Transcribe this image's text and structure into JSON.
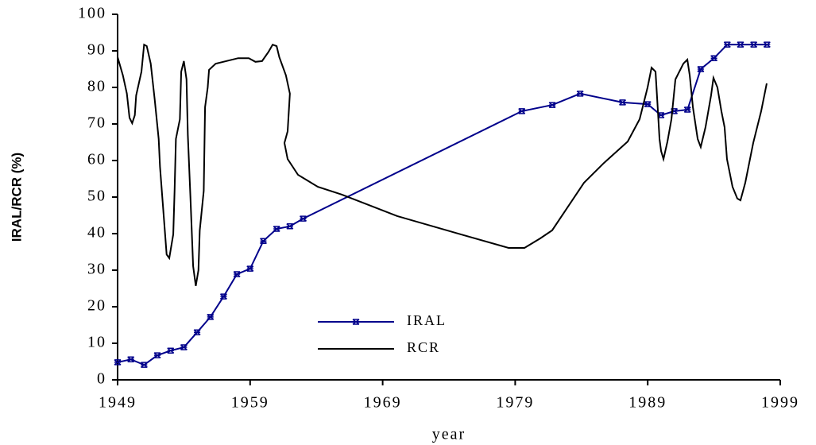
{
  "chart_data": {
    "type": "line",
    "xlabel": "year",
    "ylabel": "IRAL/RCR (%)",
    "xlim": [
      1949,
      1999
    ],
    "xticks": [
      1949,
      1959,
      1969,
      1979,
      1989,
      1999
    ],
    "ylim": [
      0,
      100
    ],
    "yticks": [
      0,
      10,
      20,
      30,
      40,
      50,
      60,
      70,
      80,
      90,
      100
    ],
    "legend": "center",
    "series": [
      {
        "name": "IRAL",
        "color": "#00008b",
        "marker": true,
        "x": [
          1949,
          1950,
          1951,
          1952,
          1953,
          1954,
          1955,
          1956,
          1957,
          1958,
          1959,
          1960,
          1961,
          1962,
          1963,
          1979.5,
          1981.8,
          1983.9,
          1987.1,
          1989,
          1990,
          1991,
          1992,
          1993,
          1994,
          1995,
          1996,
          1997,
          1998
        ],
        "values": [
          4.8,
          5.6,
          4.1,
          6.7,
          8,
          8.9,
          13,
          17.2,
          22.8,
          28.9,
          30.4,
          38,
          41.3,
          42,
          44.1,
          73.5,
          75.2,
          78.3,
          75.9,
          75.4,
          72.4,
          73.5,
          73.9,
          85,
          88,
          91.7,
          91.7,
          91.7,
          91.7
        ]
      },
      {
        "name": "RCR",
        "color": "#000000",
        "marker": false,
        "x": [
          1949,
          1949.4,
          1949.7,
          1949.9,
          1950.1,
          1950.3,
          1950.4,
          1950.8,
          1951,
          1951.2,
          1951.5,
          1951.8,
          1952.1,
          1952.2,
          1952.7,
          1952.9,
          1953.2,
          1953.3,
          1953.4,
          1953.7,
          1953.8,
          1954,
          1954.2,
          1954.3,
          1954.5,
          1954.7,
          1954.9,
          1955.1,
          1955.2,
          1955.5,
          1955.6,
          1955.8,
          1955.9,
          1956.4,
          1958.1,
          1958.9,
          1959.4,
          1959.9,
          1960.4,
          1960.7,
          1961,
          1961.2,
          1961.7,
          1962,
          1961.83,
          1961.59,
          1961.83,
          1962.61,
          1964.11,
          1965.91,
          1970.1,
          1974.9,
          1978.5,
          1979.7,
          1980.89,
          1981.79,
          1982.99,
          1984.19,
          1985.69,
          1987.49,
          1988.39,
          1988.99,
          1989.29,
          1989.59,
          1989.77,
          1989.89,
          1990.01,
          1990.19,
          1990.49,
          1990.79,
          1991.09,
          1991.69,
          1991.99,
          1992.17,
          1992.41,
          1992.77,
          1993,
          1993.36,
          1993.78,
          1993.96,
          1994.26,
          1994.56,
          1994.8,
          1994.98,
          1995.4,
          1995.76,
          1996,
          1996.36,
          1996.96,
          1997.56,
          1997.98
        ],
        "values": [
          88.3,
          83.3,
          78.3,
          71.7,
          70.2,
          72.4,
          77.8,
          84.3,
          91.7,
          91.3,
          86.5,
          76.7,
          65.9,
          58.3,
          34.3,
          33.3,
          39.8,
          51.7,
          65.9,
          71.3,
          84.3,
          87.2,
          82.2,
          67,
          49.6,
          31.1,
          25.7,
          30,
          40.9,
          51.7,
          74.6,
          80,
          84.8,
          86.5,
          88,
          88,
          87,
          87.2,
          89.8,
          91.7,
          91.3,
          88.3,
          83.3,
          78.3,
          68,
          64.8,
          60.4,
          56.1,
          52.8,
          50.7,
          44.8,
          39.8,
          36.1,
          36.1,
          38.7,
          40.9,
          47.4,
          53.9,
          59.3,
          65.2,
          71.3,
          80,
          85.4,
          84.3,
          73.5,
          65.9,
          62.6,
          60.4,
          65.2,
          71.3,
          82.2,
          86.5,
          87.6,
          83.3,
          74.6,
          65.9,
          63.7,
          69.1,
          77.8,
          82.6,
          80,
          73.5,
          69.1,
          60.4,
          52.8,
          49.6,
          49.1,
          53.9,
          64.8,
          73.5,
          81.1
        ]
      }
    ]
  }
}
